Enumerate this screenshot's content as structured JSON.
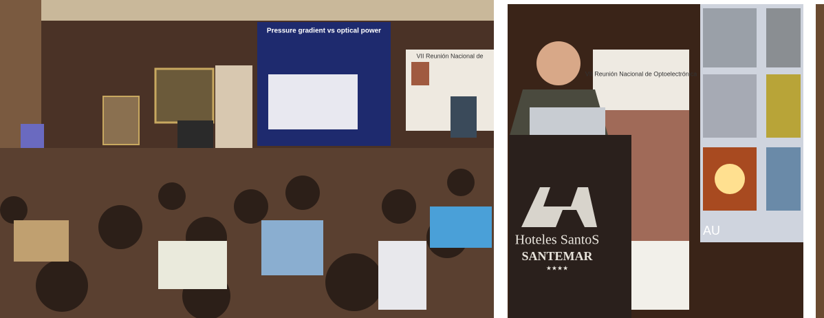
{
  "left_photo": {
    "slide_title": "Pressure gradient vs optical power",
    "banner_title": "VII Reunión Nacional de"
  },
  "right_photo": {
    "banner_title": "VII Reunión Nacional de Optoelectrónica",
    "podium_brand": "Hoteles SantoS",
    "podium_name": "SANTEMAR",
    "podium_stars": "★★★★",
    "screen_text": "AU"
  }
}
